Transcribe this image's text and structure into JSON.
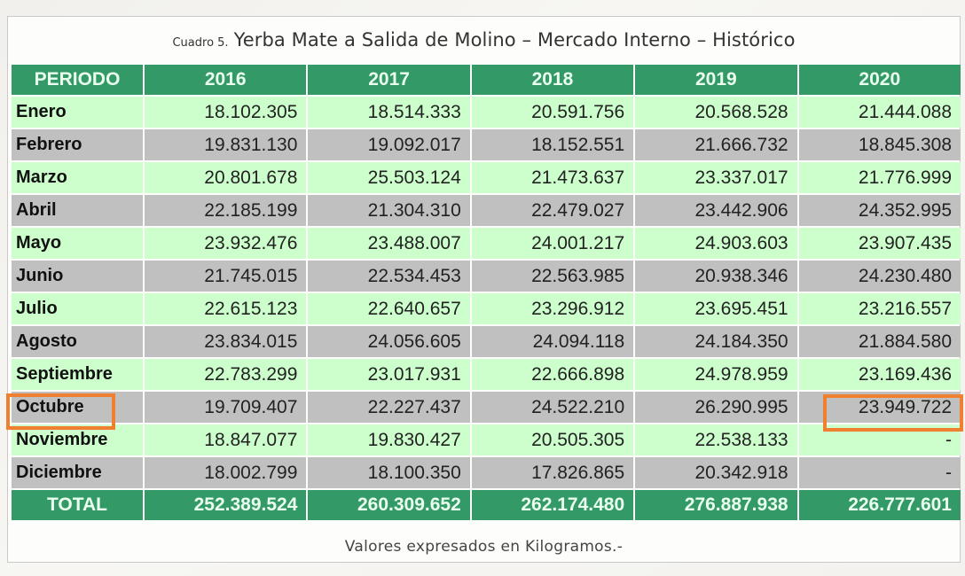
{
  "title": {
    "prefix": "Cuadro 5.",
    "main": "Yerba Mate a Salida de Molino  – Mercado Interno – Histórico"
  },
  "table": {
    "headers": [
      "PERIODO",
      "2016",
      "2017",
      "2018",
      "2019",
      "2020"
    ],
    "rows": [
      {
        "period": "Enero",
        "values": [
          "18.102.305",
          "18.514.333",
          "20.591.756",
          "20.568.528",
          "21.444.088"
        ]
      },
      {
        "period": "Febrero",
        "values": [
          "19.831.130",
          "19.092.017",
          "18.152.551",
          "21.666.732",
          "18.845.308"
        ]
      },
      {
        "period": "Marzo",
        "values": [
          "20.801.678",
          "25.503.124",
          "21.473.637",
          "23.337.017",
          "21.776.999"
        ]
      },
      {
        "period": "Abril",
        "values": [
          "22.185.199",
          "21.304.310",
          "22.479.027",
          "23.442.906",
          "24.352.995"
        ]
      },
      {
        "period": "Mayo",
        "values": [
          "23.932.476",
          "23.488.007",
          "24.001.217",
          "24.903.603",
          "23.907.435"
        ]
      },
      {
        "period": "Junio",
        "values": [
          "21.745.015",
          "22.534.453",
          "22.563.985",
          "20.938.346",
          "24.230.480"
        ]
      },
      {
        "period": "Julio",
        "values": [
          "22.615.123",
          "22.640.657",
          "23.296.912",
          "23.695.451",
          "23.216.557"
        ]
      },
      {
        "period": "Agosto",
        "values": [
          "23.834.015",
          "24.056.605",
          "24.094.118",
          "24.184.350",
          "21.884.580"
        ]
      },
      {
        "period": "Septiembre",
        "values": [
          "22.783.299",
          "23.017.931",
          "22.666.898",
          "24.978.959",
          "23.169.436"
        ]
      },
      {
        "period": "Octubre",
        "values": [
          "19.709.407",
          "22.227.437",
          "24.522.210",
          "26.290.995",
          "23.949.722"
        ]
      },
      {
        "period": "Noviembre",
        "values": [
          "18.847.077",
          "19.830.427",
          "20.505.305",
          "22.538.133",
          "-"
        ]
      },
      {
        "period": "Diciembre",
        "values": [
          "18.002.799",
          "18.100.350",
          "17.826.865",
          "20.342.918",
          "-"
        ]
      }
    ],
    "total": {
      "label": "TOTAL",
      "values": [
        "252.389.524",
        "260.309.652",
        "262.174.480",
        "276.887.938",
        "226.777.601"
      ]
    }
  },
  "footer": "Valores expresados en Kilogramos.-",
  "highlights": {
    "row": "Octubre",
    "cell": {
      "period": "Octubre",
      "year": "2020",
      "value": "23.949.722"
    }
  },
  "colors": {
    "header_green": "#339966",
    "row_light": "#ccffcc",
    "row_dark": "#c0c0c0",
    "highlight_orange": "#f08030"
  }
}
